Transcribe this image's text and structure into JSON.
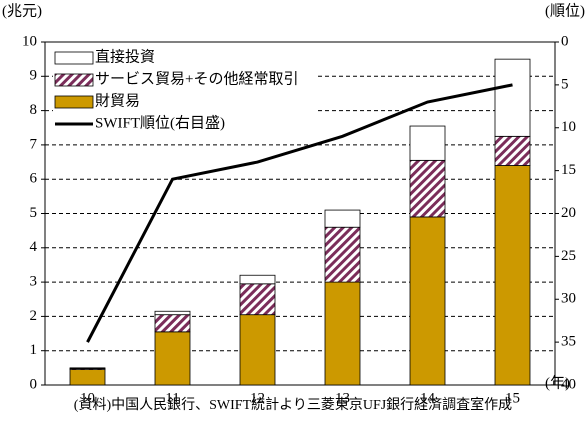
{
  "chart_data": {
    "type": "bar",
    "stacked": true,
    "y_axis_label": "(兆元)",
    "y2_axis_label": "(順位)",
    "x_axis_unit": "(年)",
    "source": "(資料)中国人民銀行、SWIFT統計より三菱東京UFJ銀行経済調査室作成",
    "categories": [
      "10",
      "11",
      "12",
      "13",
      "14",
      "15"
    ],
    "ylim": [
      0,
      10
    ],
    "yticks": [
      0,
      1,
      2,
      3,
      4,
      5,
      6,
      7,
      8,
      9,
      10
    ],
    "y2lim": [
      40,
      0
    ],
    "y2ticks": [
      0,
      5,
      10,
      15,
      20,
      25,
      30,
      35,
      40
    ],
    "grid": true,
    "legend": "upper left",
    "series": [
      {
        "name": "財貿易",
        "color": "#cc9900",
        "values": [
          0.45,
          1.55,
          2.05,
          3.0,
          4.9,
          6.4
        ]
      },
      {
        "name": "サービス貿易+その他経常取引",
        "color": "#7b2d5a",
        "pattern": "hatch",
        "values": [
          0.03,
          0.5,
          0.9,
          1.6,
          1.65,
          0.85
        ]
      },
      {
        "name": "直接投資",
        "color": "#ffffff",
        "values": [
          0.02,
          0.1,
          0.25,
          0.5,
          1.0,
          2.25
        ]
      },
      {
        "name": "SWIFT順位(右目盛)",
        "type": "line",
        "axis": "y2",
        "color": "#000000",
        "values": [
          35,
          16,
          14,
          11,
          7,
          5
        ]
      }
    ]
  }
}
